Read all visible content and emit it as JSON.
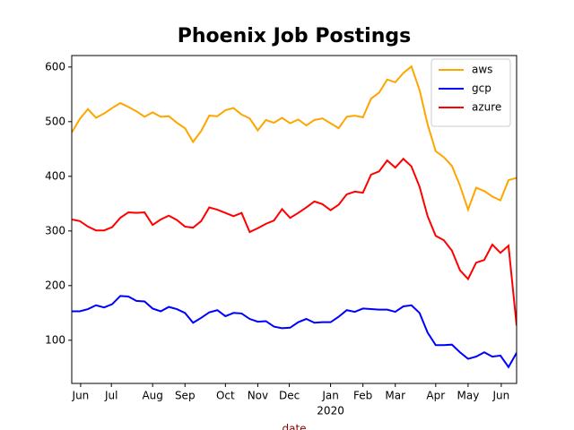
{
  "chart_data": {
    "type": "line",
    "title": "Phoenix Job Postings",
    "xlabel": "date",
    "xlabel_color": "#8b0000",
    "x": [
      0,
      1,
      2,
      3,
      4,
      5,
      6,
      7,
      8,
      9,
      10,
      11,
      12,
      13,
      14,
      15,
      16,
      17,
      18,
      19,
      20,
      21,
      22,
      23,
      24,
      25,
      26,
      27,
      28,
      29,
      30,
      31,
      32,
      33,
      34,
      35,
      36,
      37,
      38,
      39,
      40,
      41,
      42,
      43,
      44,
      45,
      46,
      47,
      48,
      49,
      50,
      51,
      52,
      53,
      54,
      55
    ],
    "series": [
      {
        "name": "aws",
        "color": "#ffa500",
        "values": [
          480,
          505,
          523,
          507,
          515,
          525,
          534,
          527,
          519,
          509,
          517,
          509,
          510,
          498,
          488,
          463,
          483,
          511,
          510,
          521,
          525,
          513,
          506,
          484,
          503,
          498,
          507,
          497,
          504,
          493,
          503,
          506,
          497,
          488,
          509,
          511,
          508,
          542,
          553,
          577,
          572,
          589,
          601,
          558,
          495,
          446,
          435,
          419,
          383,
          339,
          379,
          373,
          363,
          356,
          393,
          397
        ]
      },
      {
        "name": "gcp",
        "color": "#0000ff",
        "values": [
          153,
          153,
          157,
          164,
          160,
          166,
          181,
          180,
          172,
          171,
          158,
          153,
          161,
          157,
          150,
          132,
          141,
          151,
          155,
          144,
          150,
          149,
          139,
          134,
          135,
          125,
          122,
          123,
          133,
          139,
          132,
          133,
          133,
          143,
          155,
          152,
          158,
          157,
          156,
          156,
          152,
          162,
          164,
          150,
          114,
          91,
          91,
          92,
          78,
          66,
          70,
          78,
          70,
          72,
          51,
          77
        ]
      },
      {
        "name": "azure",
        "color": "#ff0000",
        "values": [
          321,
          318,
          308,
          301,
          301,
          307,
          324,
          334,
          333,
          334,
          311,
          321,
          328,
          320,
          308,
          306,
          318,
          343,
          339,
          333,
          327,
          333,
          298,
          305,
          313,
          319,
          340,
          324,
          333,
          343,
          354,
          349,
          338,
          348,
          367,
          372,
          370,
          403,
          409,
          429,
          416,
          432,
          418,
          381,
          327,
          291,
          283,
          264,
          228,
          212,
          242,
          247,
          275,
          260,
          273,
          127
        ]
      }
    ],
    "xlim": [
      0,
      55
    ],
    "xticks": [
      {
        "value": 1.1,
        "label": "Jun"
      },
      {
        "value": 4.9,
        "label": "Jul"
      },
      {
        "value": 10,
        "label": "Aug"
      },
      {
        "value": 14,
        "label": "Sep"
      },
      {
        "value": 19,
        "label": "Oct"
      },
      {
        "value": 23,
        "label": "Nov"
      },
      {
        "value": 26.9,
        "label": "Dec"
      },
      {
        "value": 32,
        "label": "Jan"
      },
      {
        "value": 36,
        "label": "Feb"
      },
      {
        "value": 40,
        "label": "Mar"
      },
      {
        "value": 45,
        "label": "Apr"
      },
      {
        "value": 49,
        "label": "May"
      },
      {
        "value": 53.1,
        "label": "Jun"
      }
    ],
    "year_labels": [
      {
        "value": 32,
        "label": "2020"
      }
    ],
    "ylim": [
      21,
      621
    ],
    "yticks": [
      100,
      200,
      300,
      400,
      500,
      600
    ],
    "legend": "upper right"
  }
}
